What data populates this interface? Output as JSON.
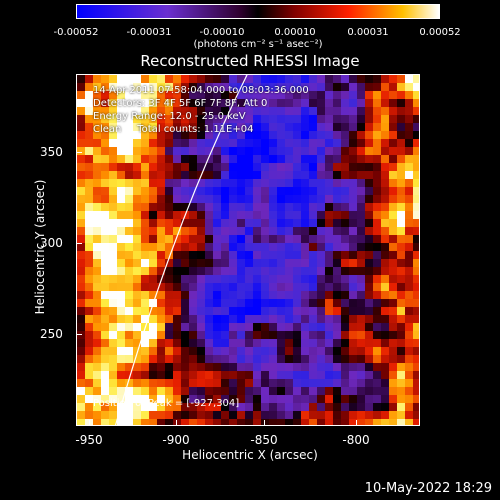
{
  "colorbar": {
    "ticks": [
      "-0.00052",
      "-0.00031",
      "-0.00010",
      "0.00010",
      "0.00031",
      "0.00052"
    ],
    "unit": "(photons cm⁻² s⁻¹ asec⁻²)"
  },
  "title": "Reconstructed RHESSI Image",
  "info": {
    "time": "14-Apr-2011 07:58:04.000 to 08:03:36.000",
    "detectors": "Detectors: 3F 4F 5F 6F 7F 8F, Att 0",
    "energy": "Energy Range: 12.0 - 25.0 keV",
    "clean": "Clean     Total counts: 1.11E+04"
  },
  "peak": "Position of Peak = [-927,304]",
  "axes": {
    "xlabel": "Heliocentric X (arcsec)",
    "ylabel": "Heliocentric Y (arcsec)",
    "xticks": [
      "-950",
      "-900",
      "-850",
      "-800"
    ],
    "yticks": [
      "350",
      "300",
      "250"
    ]
  },
  "footer": {
    "date": "10-May-2022 18:29"
  },
  "colors": {
    "low": "#0000ff",
    "mid_low": "#7a2fc8",
    "zero": "#000000",
    "mid_high": "#c81e1e",
    "high": "#ffffff"
  }
}
